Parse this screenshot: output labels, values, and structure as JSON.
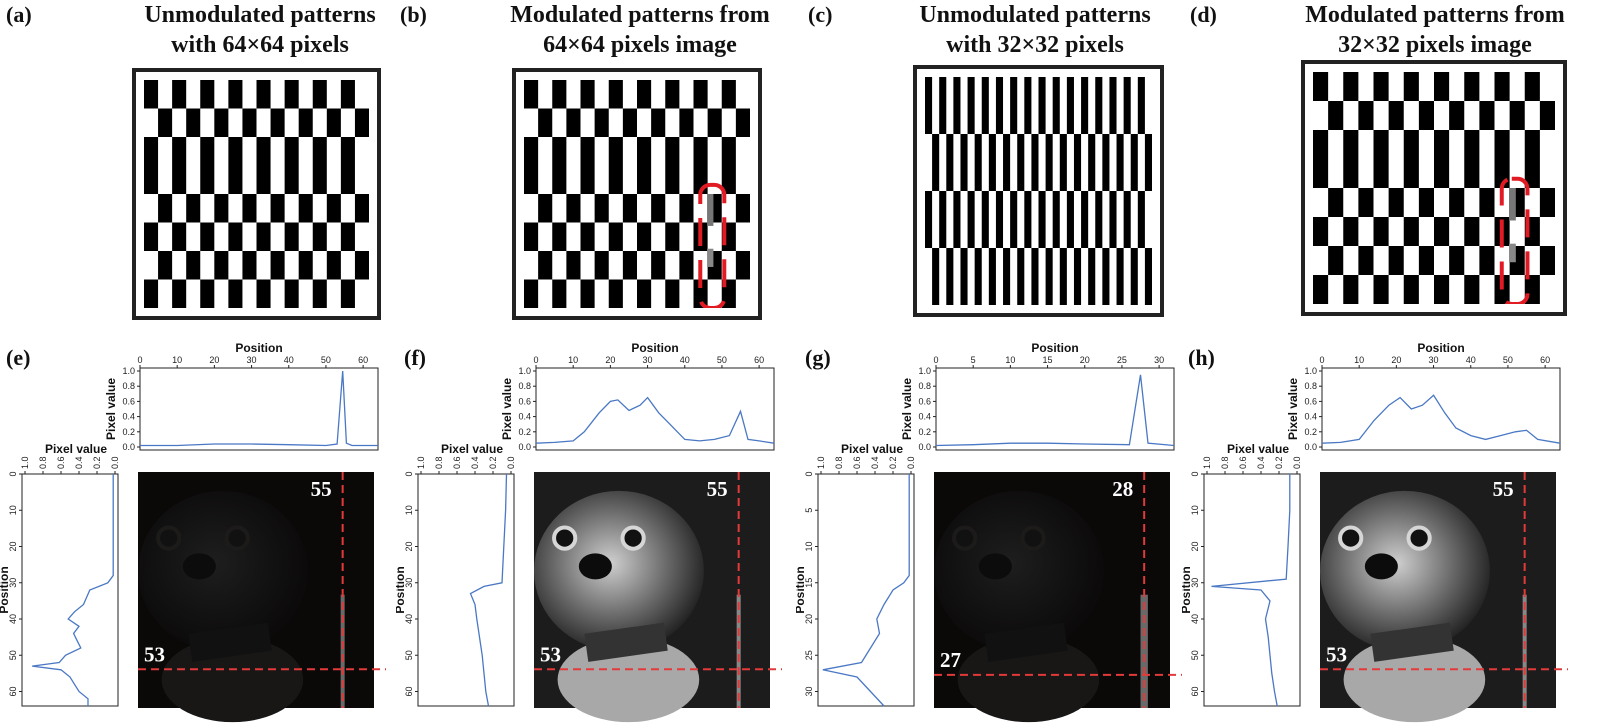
{
  "panels": [
    {
      "id": "a",
      "label": "(a)",
      "title": [
        "Unmodulated patterns",
        "with 64×64 pixels"
      ],
      "pattern": "checker",
      "gray": false
    },
    {
      "id": "b",
      "label": "(b)",
      "title": [
        "Modulated patterns from",
        "64×64 pixels image"
      ],
      "pattern": "checker",
      "gray": true
    },
    {
      "id": "c",
      "label": "(c)",
      "title": [
        "Unmodulated patterns",
        "with 32×32 pixels"
      ],
      "pattern": "stripes",
      "gray": false
    },
    {
      "id": "d",
      "label": "(d)",
      "title": [
        "Modulated patterns from",
        "32×32 pixels image"
      ],
      "pattern": "checker",
      "gray": true
    }
  ],
  "plots": [
    {
      "id": "e",
      "label": "(e)",
      "grid": 64,
      "bright": false,
      "vline_value": "55",
      "hline_value": "53",
      "top_xticks": [
        "0",
        "10",
        "20",
        "30",
        "40",
        "50",
        "60"
      ],
      "side_ticks": [
        "0",
        "10",
        "20",
        "30",
        "40",
        "50",
        "60"
      ],
      "top_xmax": 64,
      "top_curve": [
        [
          0,
          0.02
        ],
        [
          10,
          0.02
        ],
        [
          20,
          0.04
        ],
        [
          30,
          0.04
        ],
        [
          40,
          0.03
        ],
        [
          50,
          0.02
        ],
        [
          53,
          0.04
        ],
        [
          54.5,
          1.0
        ],
        [
          55.5,
          0.05
        ],
        [
          57,
          0.02
        ],
        [
          64,
          0.02
        ]
      ],
      "side_curve": [
        [
          0,
          0.02
        ],
        [
          28,
          0.02
        ],
        [
          30,
          0.08
        ],
        [
          32,
          0.28
        ],
        [
          36,
          0.35
        ],
        [
          38,
          0.45
        ],
        [
          40,
          0.52
        ],
        [
          42,
          0.4
        ],
        [
          44,
          0.46
        ],
        [
          46,
          0.42
        ],
        [
          48,
          0.38
        ],
        [
          50,
          0.55
        ],
        [
          52,
          0.62
        ],
        [
          53,
          0.92
        ],
        [
          54,
          0.6
        ],
        [
          56,
          0.5
        ],
        [
          58,
          0.45
        ],
        [
          60,
          0.4
        ],
        [
          62,
          0.3
        ],
        [
          64,
          0.3
        ]
      ]
    },
    {
      "id": "f",
      "label": "(f)",
      "grid": 64,
      "bright": true,
      "vline_value": "55",
      "hline_value": "53",
      "top_xticks": [
        "0",
        "10",
        "20",
        "30",
        "40",
        "50",
        "60"
      ],
      "side_ticks": [
        "0",
        "10",
        "20",
        "30",
        "40",
        "50",
        "60"
      ],
      "top_xmax": 64,
      "top_curve": [
        [
          0,
          0.05
        ],
        [
          5,
          0.06
        ],
        [
          10,
          0.08
        ],
        [
          13,
          0.2
        ],
        [
          17,
          0.45
        ],
        [
          20,
          0.6
        ],
        [
          22,
          0.62
        ],
        [
          25,
          0.48
        ],
        [
          28,
          0.55
        ],
        [
          30,
          0.65
        ],
        [
          33,
          0.45
        ],
        [
          36,
          0.3
        ],
        [
          38,
          0.2
        ],
        [
          40,
          0.1
        ],
        [
          44,
          0.08
        ],
        [
          48,
          0.1
        ],
        [
          52,
          0.15
        ],
        [
          55,
          0.47
        ],
        [
          57,
          0.1
        ],
        [
          60,
          0.08
        ],
        [
          64,
          0.05
        ]
      ],
      "side_curve": [
        [
          0,
          0.05
        ],
        [
          10,
          0.06
        ],
        [
          20,
          0.08
        ],
        [
          30,
          0.1
        ],
        [
          31,
          0.3
        ],
        [
          33,
          0.45
        ],
        [
          36,
          0.4
        ],
        [
          40,
          0.38
        ],
        [
          45,
          0.35
        ],
        [
          50,
          0.32
        ],
        [
          55,
          0.3
        ],
        [
          60,
          0.28
        ],
        [
          64,
          0.25
        ]
      ]
    },
    {
      "id": "g",
      "label": "(g)",
      "grid": 32,
      "bright": false,
      "vline_value": "28",
      "hline_value": "27",
      "top_xticks": [
        "0",
        "5",
        "10",
        "15",
        "20",
        "25",
        "30"
      ],
      "side_ticks": [
        "0",
        "5",
        "10",
        "15",
        "20",
        "25",
        "30"
      ],
      "top_xmax": 32,
      "top_curve": [
        [
          0,
          0.02
        ],
        [
          5,
          0.03
        ],
        [
          10,
          0.05
        ],
        [
          15,
          0.05
        ],
        [
          20,
          0.04
        ],
        [
          26,
          0.03
        ],
        [
          27.5,
          0.95
        ],
        [
          28.5,
          0.05
        ],
        [
          32,
          0.02
        ]
      ],
      "side_curve": [
        [
          0,
          0.02
        ],
        [
          14,
          0.02
        ],
        [
          15,
          0.08
        ],
        [
          16,
          0.2
        ],
        [
          18,
          0.3
        ],
        [
          20,
          0.38
        ],
        [
          22,
          0.35
        ],
        [
          24,
          0.45
        ],
        [
          26,
          0.55
        ],
        [
          27,
          0.98
        ],
        [
          28,
          0.6
        ],
        [
          30,
          0.45
        ],
        [
          32,
          0.3
        ]
      ]
    },
    {
      "id": "h",
      "label": "(h)",
      "grid": 64,
      "bright": true,
      "vline_value": "55",
      "hline_value": "53",
      "top_xticks": [
        "0",
        "10",
        "20",
        "30",
        "40",
        "50",
        "60"
      ],
      "side_ticks": [
        "0",
        "10",
        "20",
        "30",
        "40",
        "50",
        "60"
      ],
      "top_xmax": 64,
      "top_curve": [
        [
          0,
          0.05
        ],
        [
          5,
          0.06
        ],
        [
          10,
          0.1
        ],
        [
          14,
          0.35
        ],
        [
          18,
          0.55
        ],
        [
          21,
          0.65
        ],
        [
          24,
          0.5
        ],
        [
          27,
          0.55
        ],
        [
          30,
          0.68
        ],
        [
          33,
          0.45
        ],
        [
          36,
          0.25
        ],
        [
          40,
          0.15
        ],
        [
          44,
          0.1
        ],
        [
          48,
          0.15
        ],
        [
          52,
          0.2
        ],
        [
          55,
          0.22
        ],
        [
          58,
          0.1
        ],
        [
          64,
          0.05
        ]
      ],
      "side_curve": [
        [
          0,
          0.08
        ],
        [
          10,
          0.08
        ],
        [
          20,
          0.1
        ],
        [
          29,
          0.12
        ],
        [
          31,
          0.95
        ],
        [
          32,
          0.4
        ],
        [
          35,
          0.3
        ],
        [
          40,
          0.35
        ],
        [
          45,
          0.32
        ],
        [
          50,
          0.3
        ],
        [
          55,
          0.28
        ],
        [
          60,
          0.25
        ],
        [
          64,
          0.22
        ]
      ]
    }
  ],
  "axis_labels": {
    "position": "Position",
    "pixel_value": "Pixel value"
  },
  "value_ticks": [
    "0.0",
    "0.2",
    "0.4",
    "0.6",
    "0.8",
    "1.0"
  ],
  "colors": {
    "curve": "#4a78c4",
    "dash": "#e23a3a",
    "highlight": "#e01b24"
  }
}
